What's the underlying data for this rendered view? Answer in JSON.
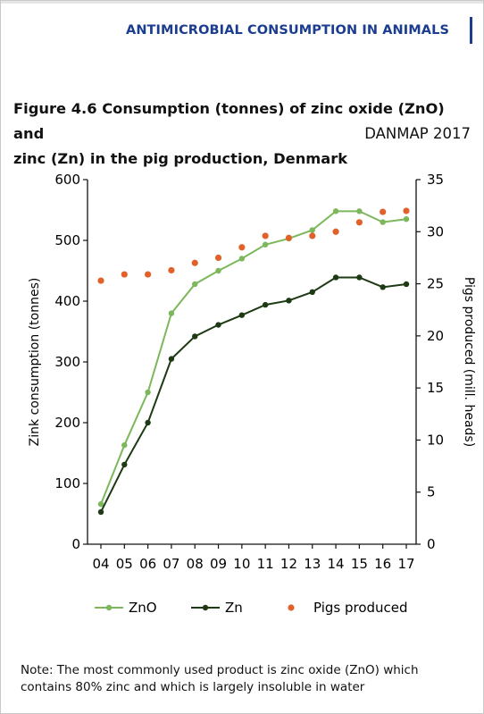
{
  "header": {
    "section_title": "ANTIMICROBIAL CONSUMPTION IN ANIMALS"
  },
  "figure": {
    "title_line1": "Figure 4.6 Consumption (tonnes) of zinc oxide (ZnO) and",
    "title_line2": "zinc (Zn) in the pig production, Denmark",
    "source": "DANMAP 2017"
  },
  "note": {
    "line1": "Note: The most commonly used product is zinc oxide (ZnO) which",
    "line2": "contains 80% zinc and which is largely insoluble in water"
  },
  "colors": {
    "zno": "#7cb85b",
    "zn": "#1e3a14",
    "pigs": "#e0622a",
    "axis": "#111111"
  },
  "chart_data": {
    "type": "line",
    "categories": [
      "04",
      "05",
      "06",
      "07",
      "08",
      "09",
      "10",
      "11",
      "12",
      "13",
      "14",
      "15",
      "16",
      "17"
    ],
    "ylabel": "Zink consumption (tonnes)",
    "y2label": "Pigs produced (mill. heads)",
    "ylim": [
      0,
      600
    ],
    "yticks": [
      0,
      100,
      200,
      300,
      400,
      500,
      600
    ],
    "y2lim": [
      0,
      35
    ],
    "y2ticks": [
      0,
      5,
      10,
      15,
      20,
      25,
      30,
      35
    ],
    "grid": false,
    "legend_position": "bottom",
    "series": [
      {
        "name": "ZnO",
        "type": "line",
        "axis": "left",
        "values": [
          66,
          163,
          250,
          380,
          428,
          450,
          470,
          493,
          503,
          517,
          548,
          548,
          530,
          535
        ]
      },
      {
        "name": "Zn",
        "type": "line",
        "axis": "left",
        "values": [
          53,
          131,
          200,
          305,
          342,
          361,
          377,
          394,
          401,
          415,
          439,
          439,
          423,
          428
        ]
      },
      {
        "name": "Pigs produced",
        "type": "scatter",
        "axis": "right",
        "values": [
          25.3,
          25.9,
          25.9,
          26.3,
          27.0,
          27.5,
          28.5,
          29.6,
          29.4,
          29.6,
          30.0,
          30.9,
          31.9,
          32.0
        ]
      }
    ]
  }
}
